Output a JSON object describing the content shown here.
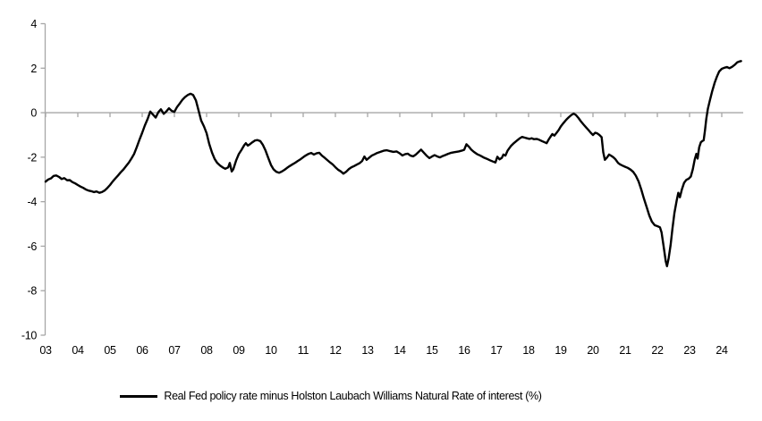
{
  "chart_data": {
    "type": "line",
    "title": "",
    "legend_position": "bottom-center",
    "grid": "zero-line-only",
    "background": "#ffffff",
    "axis_color": "#a6a6a6",
    "x_axis": {
      "tick_labels": [
        "03",
        "04",
        "05",
        "06",
        "07",
        "08",
        "09",
        "10",
        "11",
        "12",
        "13",
        "14",
        "15",
        "16",
        "17",
        "18",
        "19",
        "20",
        "21",
        "22",
        "23",
        "24"
      ],
      "first_year": 2003,
      "range": [
        2003,
        2024.7
      ]
    },
    "y_axis": {
      "ticks": [
        4,
        2,
        0,
        -2,
        -4,
        -6,
        -8,
        -10
      ],
      "range": [
        -10,
        4
      ]
    },
    "series": [
      {
        "name": "Real Fed policy rate minus Holston Laubach Williams Natural Rate of interest (%)",
        "color": "#000000",
        "points": [
          [
            2003.0,
            -3.1
          ],
          [
            2003.08,
            -3.0
          ],
          [
            2003.17,
            -2.95
          ],
          [
            2003.25,
            -2.84
          ],
          [
            2003.33,
            -2.82
          ],
          [
            2003.42,
            -2.89
          ],
          [
            2003.5,
            -2.98
          ],
          [
            2003.58,
            -2.94
          ],
          [
            2003.67,
            -3.04
          ],
          [
            2003.75,
            -3.03
          ],
          [
            2003.83,
            -3.12
          ],
          [
            2003.92,
            -3.18
          ],
          [
            2004.0,
            -3.25
          ],
          [
            2004.08,
            -3.32
          ],
          [
            2004.17,
            -3.38
          ],
          [
            2004.25,
            -3.45
          ],
          [
            2004.33,
            -3.5
          ],
          [
            2004.42,
            -3.53
          ],
          [
            2004.5,
            -3.57
          ],
          [
            2004.58,
            -3.54
          ],
          [
            2004.67,
            -3.6
          ],
          [
            2004.75,
            -3.57
          ],
          [
            2004.83,
            -3.5
          ],
          [
            2004.92,
            -3.38
          ],
          [
            2005.0,
            -3.25
          ],
          [
            2005.08,
            -3.1
          ],
          [
            2005.17,
            -2.95
          ],
          [
            2005.25,
            -2.82
          ],
          [
            2005.33,
            -2.68
          ],
          [
            2005.42,
            -2.55
          ],
          [
            2005.5,
            -2.4
          ],
          [
            2005.58,
            -2.25
          ],
          [
            2005.67,
            -2.05
          ],
          [
            2005.75,
            -1.85
          ],
          [
            2005.83,
            -1.55
          ],
          [
            2005.92,
            -1.2
          ],
          [
            2006.0,
            -0.9
          ],
          [
            2006.08,
            -0.58
          ],
          [
            2006.17,
            -0.28
          ],
          [
            2006.25,
            0.05
          ],
          [
            2006.33,
            -0.08
          ],
          [
            2006.42,
            -0.22
          ],
          [
            2006.5,
            0.02
          ],
          [
            2006.58,
            0.15
          ],
          [
            2006.67,
            -0.05
          ],
          [
            2006.75,
            0.06
          ],
          [
            2006.83,
            0.2
          ],
          [
            2006.92,
            0.08
          ],
          [
            2007.0,
            0.04
          ],
          [
            2007.08,
            0.25
          ],
          [
            2007.17,
            0.42
          ],
          [
            2007.25,
            0.58
          ],
          [
            2007.33,
            0.7
          ],
          [
            2007.42,
            0.8
          ],
          [
            2007.5,
            0.85
          ],
          [
            2007.58,
            0.8
          ],
          [
            2007.67,
            0.55
          ],
          [
            2007.75,
            0.1
          ],
          [
            2007.83,
            -0.35
          ],
          [
            2007.92,
            -0.62
          ],
          [
            2008.0,
            -0.92
          ],
          [
            2008.08,
            -1.4
          ],
          [
            2008.17,
            -1.8
          ],
          [
            2008.25,
            -2.08
          ],
          [
            2008.33,
            -2.26
          ],
          [
            2008.42,
            -2.38
          ],
          [
            2008.5,
            -2.46
          ],
          [
            2008.58,
            -2.52
          ],
          [
            2008.67,
            -2.46
          ],
          [
            2008.72,
            -2.26
          ],
          [
            2008.78,
            -2.64
          ],
          [
            2008.83,
            -2.54
          ],
          [
            2008.92,
            -2.14
          ],
          [
            2009.0,
            -1.86
          ],
          [
            2009.08,
            -1.68
          ],
          [
            2009.17,
            -1.46
          ],
          [
            2009.22,
            -1.37
          ],
          [
            2009.28,
            -1.48
          ],
          [
            2009.35,
            -1.41
          ],
          [
            2009.42,
            -1.33
          ],
          [
            2009.5,
            -1.25
          ],
          [
            2009.58,
            -1.23
          ],
          [
            2009.67,
            -1.28
          ],
          [
            2009.75,
            -1.45
          ],
          [
            2009.83,
            -1.7
          ],
          [
            2009.92,
            -2.05
          ],
          [
            2010.0,
            -2.35
          ],
          [
            2010.08,
            -2.55
          ],
          [
            2010.17,
            -2.66
          ],
          [
            2010.25,
            -2.7
          ],
          [
            2010.33,
            -2.65
          ],
          [
            2010.42,
            -2.57
          ],
          [
            2010.5,
            -2.48
          ],
          [
            2010.58,
            -2.4
          ],
          [
            2010.67,
            -2.32
          ],
          [
            2010.75,
            -2.25
          ],
          [
            2010.83,
            -2.17
          ],
          [
            2010.92,
            -2.09
          ],
          [
            2011.0,
            -2.0
          ],
          [
            2011.08,
            -1.92
          ],
          [
            2011.17,
            -1.85
          ],
          [
            2011.25,
            -1.81
          ],
          [
            2011.33,
            -1.88
          ],
          [
            2011.42,
            -1.82
          ],
          [
            2011.5,
            -1.8
          ],
          [
            2011.58,
            -1.93
          ],
          [
            2011.67,
            -2.03
          ],
          [
            2011.75,
            -2.13
          ],
          [
            2011.83,
            -2.23
          ],
          [
            2011.92,
            -2.33
          ],
          [
            2012.0,
            -2.45
          ],
          [
            2012.08,
            -2.56
          ],
          [
            2012.17,
            -2.64
          ],
          [
            2012.25,
            -2.74
          ],
          [
            2012.33,
            -2.66
          ],
          [
            2012.42,
            -2.53
          ],
          [
            2012.5,
            -2.45
          ],
          [
            2012.58,
            -2.4
          ],
          [
            2012.67,
            -2.33
          ],
          [
            2012.75,
            -2.27
          ],
          [
            2012.83,
            -2.17
          ],
          [
            2012.9,
            -1.97
          ],
          [
            2012.97,
            -2.12
          ],
          [
            2013.05,
            -2.02
          ],
          [
            2013.13,
            -1.93
          ],
          [
            2013.22,
            -1.87
          ],
          [
            2013.3,
            -1.81
          ],
          [
            2013.4,
            -1.76
          ],
          [
            2013.5,
            -1.71
          ],
          [
            2013.6,
            -1.69
          ],
          [
            2013.7,
            -1.73
          ],
          [
            2013.8,
            -1.76
          ],
          [
            2013.9,
            -1.74
          ],
          [
            2014.0,
            -1.83
          ],
          [
            2014.08,
            -1.92
          ],
          [
            2014.17,
            -1.86
          ],
          [
            2014.25,
            -1.84
          ],
          [
            2014.33,
            -1.93
          ],
          [
            2014.42,
            -1.96
          ],
          [
            2014.5,
            -1.88
          ],
          [
            2014.58,
            -1.77
          ],
          [
            2014.66,
            -1.66
          ],
          [
            2014.75,
            -1.8
          ],
          [
            2014.83,
            -1.93
          ],
          [
            2014.92,
            -2.04
          ],
          [
            2015.0,
            -1.97
          ],
          [
            2015.08,
            -1.91
          ],
          [
            2015.17,
            -1.97
          ],
          [
            2015.25,
            -2.01
          ],
          [
            2015.33,
            -1.95
          ],
          [
            2015.42,
            -1.9
          ],
          [
            2015.5,
            -1.85
          ],
          [
            2015.58,
            -1.81
          ],
          [
            2015.67,
            -1.78
          ],
          [
            2015.75,
            -1.76
          ],
          [
            2015.83,
            -1.74
          ],
          [
            2015.92,
            -1.71
          ],
          [
            2016.0,
            -1.67
          ],
          [
            2016.07,
            -1.42
          ],
          [
            2016.15,
            -1.53
          ],
          [
            2016.22,
            -1.66
          ],
          [
            2016.3,
            -1.76
          ],
          [
            2016.4,
            -1.86
          ],
          [
            2016.5,
            -1.93
          ],
          [
            2016.6,
            -2.01
          ],
          [
            2016.7,
            -2.07
          ],
          [
            2016.8,
            -2.14
          ],
          [
            2016.9,
            -2.2
          ],
          [
            2016.97,
            -2.24
          ],
          [
            2017.03,
            -1.98
          ],
          [
            2017.1,
            -2.1
          ],
          [
            2017.17,
            -2.03
          ],
          [
            2017.22,
            -1.88
          ],
          [
            2017.28,
            -1.93
          ],
          [
            2017.35,
            -1.7
          ],
          [
            2017.45,
            -1.5
          ],
          [
            2017.55,
            -1.36
          ],
          [
            2017.65,
            -1.24
          ],
          [
            2017.72,
            -1.16
          ],
          [
            2017.8,
            -1.09
          ],
          [
            2017.88,
            -1.12
          ],
          [
            2017.95,
            -1.15
          ],
          [
            2018.03,
            -1.18
          ],
          [
            2018.1,
            -1.15
          ],
          [
            2018.17,
            -1.19
          ],
          [
            2018.25,
            -1.18
          ],
          [
            2018.33,
            -1.22
          ],
          [
            2018.42,
            -1.28
          ],
          [
            2018.5,
            -1.33
          ],
          [
            2018.56,
            -1.37
          ],
          [
            2018.62,
            -1.22
          ],
          [
            2018.68,
            -1.08
          ],
          [
            2018.74,
            -0.96
          ],
          [
            2018.8,
            -1.03
          ],
          [
            2018.86,
            -0.92
          ],
          [
            2018.93,
            -0.79
          ],
          [
            2019.0,
            -0.62
          ],
          [
            2019.08,
            -0.47
          ],
          [
            2019.17,
            -0.32
          ],
          [
            2019.25,
            -0.2
          ],
          [
            2019.33,
            -0.1
          ],
          [
            2019.4,
            -0.04
          ],
          [
            2019.47,
            -0.1
          ],
          [
            2019.55,
            -0.24
          ],
          [
            2019.62,
            -0.38
          ],
          [
            2019.7,
            -0.52
          ],
          [
            2019.78,
            -0.65
          ],
          [
            2019.86,
            -0.78
          ],
          [
            2019.93,
            -0.9
          ],
          [
            2020.0,
            -1.0
          ],
          [
            2020.07,
            -0.9
          ],
          [
            2020.13,
            -0.93
          ],
          [
            2020.2,
            -1.0
          ],
          [
            2020.27,
            -1.1
          ],
          [
            2020.32,
            -1.78
          ],
          [
            2020.37,
            -2.12
          ],
          [
            2020.43,
            -2.02
          ],
          [
            2020.5,
            -1.88
          ],
          [
            2020.57,
            -1.94
          ],
          [
            2020.63,
            -2.0
          ],
          [
            2020.7,
            -2.1
          ],
          [
            2020.78,
            -2.26
          ],
          [
            2020.85,
            -2.33
          ],
          [
            2020.92,
            -2.38
          ],
          [
            2021.0,
            -2.43
          ],
          [
            2021.08,
            -2.48
          ],
          [
            2021.17,
            -2.56
          ],
          [
            2021.25,
            -2.66
          ],
          [
            2021.33,
            -2.83
          ],
          [
            2021.42,
            -3.1
          ],
          [
            2021.5,
            -3.45
          ],
          [
            2021.58,
            -3.85
          ],
          [
            2021.67,
            -4.25
          ],
          [
            2021.75,
            -4.62
          ],
          [
            2021.83,
            -4.9
          ],
          [
            2021.92,
            -5.06
          ],
          [
            2022.0,
            -5.1
          ],
          [
            2022.08,
            -5.15
          ],
          [
            2022.13,
            -5.38
          ],
          [
            2022.19,
            -5.95
          ],
          [
            2022.26,
            -6.68
          ],
          [
            2022.3,
            -6.9
          ],
          [
            2022.35,
            -6.55
          ],
          [
            2022.41,
            -5.95
          ],
          [
            2022.47,
            -5.2
          ],
          [
            2022.53,
            -4.5
          ],
          [
            2022.6,
            -3.95
          ],
          [
            2022.65,
            -3.6
          ],
          [
            2022.7,
            -3.8
          ],
          [
            2022.76,
            -3.45
          ],
          [
            2022.83,
            -3.15
          ],
          [
            2022.9,
            -3.02
          ],
          [
            2022.97,
            -2.97
          ],
          [
            2023.04,
            -2.87
          ],
          [
            2023.1,
            -2.55
          ],
          [
            2023.16,
            -2.1
          ],
          [
            2023.21,
            -1.85
          ],
          [
            2023.25,
            -2.06
          ],
          [
            2023.3,
            -1.55
          ],
          [
            2023.35,
            -1.33
          ],
          [
            2023.4,
            -1.27
          ],
          [
            2023.44,
            -1.24
          ],
          [
            2023.48,
            -0.78
          ],
          [
            2023.52,
            -0.28
          ],
          [
            2023.57,
            0.18
          ],
          [
            2023.63,
            0.55
          ],
          [
            2023.7,
            0.95
          ],
          [
            2023.78,
            1.35
          ],
          [
            2023.85,
            1.62
          ],
          [
            2023.92,
            1.85
          ],
          [
            2024.0,
            1.97
          ],
          [
            2024.08,
            2.02
          ],
          [
            2024.16,
            2.05
          ],
          [
            2024.24,
            2.0
          ],
          [
            2024.32,
            2.06
          ],
          [
            2024.4,
            2.15
          ],
          [
            2024.48,
            2.26
          ],
          [
            2024.55,
            2.3
          ],
          [
            2024.6,
            2.32
          ]
        ]
      }
    ]
  },
  "legend": {
    "label": "Real Fed policy rate minus Holston Laubach Williams Natural Rate of interest (%)"
  }
}
